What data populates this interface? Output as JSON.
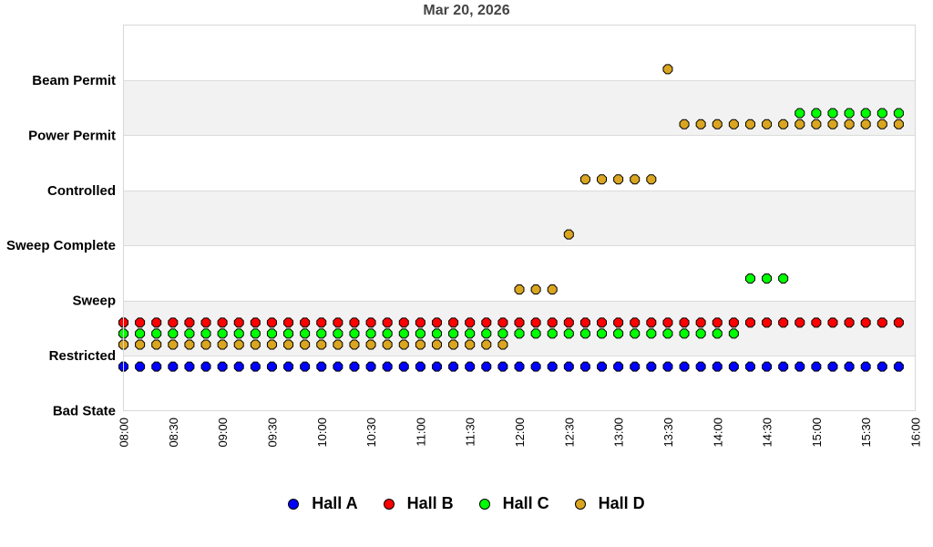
{
  "chart_data": {
    "type": "scatter",
    "title": "Mar 20, 2026",
    "xlabel": "",
    "ylabel": "",
    "y_categories": [
      "Bad State",
      "Restricted",
      "Sweep",
      "Sweep Complete",
      "Controlled",
      "Power Permit",
      "Beam Permit"
    ],
    "ylim": [
      0,
      7
    ],
    "x_ticks": [
      "08:00",
      "08:30",
      "09:00",
      "09:30",
      "10:00",
      "10:30",
      "11:00",
      "11:30",
      "12:00",
      "12:30",
      "13:00",
      "13:30",
      "14:00",
      "14:30",
      "15:00",
      "15:30",
      "16:00"
    ],
    "x_range": [
      "08:00",
      "16:00"
    ],
    "x_step_minutes": 10,
    "grid": true,
    "banded_background": true,
    "legend_position": "bottom",
    "series": [
      {
        "name": "Hall A",
        "color": "#0000ff",
        "offset": -0.2,
        "start": "08:00",
        "values": [
          1,
          1,
          1,
          1,
          1,
          1,
          1,
          1,
          1,
          1,
          1,
          1,
          1,
          1,
          1,
          1,
          1,
          1,
          1,
          1,
          1,
          1,
          1,
          1,
          1,
          1,
          1,
          1,
          1,
          1,
          1,
          1,
          1,
          1,
          1,
          1,
          1,
          1,
          1,
          1,
          1,
          1,
          1,
          1,
          1,
          1,
          1,
          1
        ]
      },
      {
        "name": "Hall B",
        "color": "#ff0000",
        "offset": 0.6,
        "start": "08:00",
        "values": [
          1,
          1,
          1,
          1,
          1,
          1,
          1,
          1,
          1,
          1,
          1,
          1,
          1,
          1,
          1,
          1,
          1,
          1,
          1,
          1,
          1,
          1,
          1,
          1,
          1,
          1,
          1,
          1,
          1,
          1,
          1,
          1,
          1,
          1,
          1,
          1,
          1,
          1,
          1,
          1,
          1,
          1,
          1,
          1,
          1,
          1,
          1,
          1
        ]
      },
      {
        "name": "Hall C",
        "color": "#00ff00",
        "offset": 0.4,
        "start": "08:00",
        "values": [
          1,
          1,
          1,
          1,
          1,
          1,
          1,
          1,
          1,
          1,
          1,
          1,
          1,
          1,
          1,
          1,
          1,
          1,
          1,
          1,
          1,
          1,
          1,
          1,
          1,
          1,
          1,
          1,
          1,
          1,
          1,
          1,
          1,
          1,
          1,
          1,
          1,
          1,
          2,
          2,
          2,
          5,
          5,
          5,
          5,
          5,
          5,
          5
        ]
      },
      {
        "name": "Hall D",
        "color": "#daa520",
        "offset": 0.2,
        "start": "08:00",
        "values": [
          1,
          1,
          1,
          1,
          1,
          1,
          1,
          1,
          1,
          1,
          1,
          1,
          1,
          1,
          1,
          1,
          1,
          1,
          1,
          1,
          1,
          1,
          1,
          1,
          2,
          2,
          2,
          3,
          4,
          4,
          4,
          4,
          4,
          6,
          5,
          5,
          5,
          5,
          5,
          5,
          5,
          5,
          5,
          5,
          5,
          5,
          5,
          5
        ]
      }
    ]
  },
  "legend": {
    "items": [
      {
        "label": "Hall A",
        "color": "#0000ff"
      },
      {
        "label": "Hall B",
        "color": "#ff0000"
      },
      {
        "label": "Hall C",
        "color": "#00ff00"
      },
      {
        "label": "Hall D",
        "color": "#daa520"
      }
    ]
  }
}
